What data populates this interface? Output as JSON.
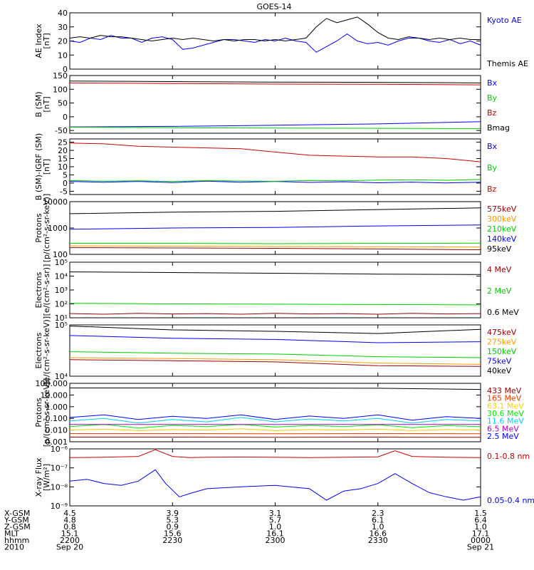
{
  "title": "GOES-14",
  "chart_data": [
    {
      "type": "line",
      "ylabel_lines": [
        "AE Index",
        "[nT]"
      ],
      "ylim": [
        0,
        40
      ],
      "yscale": "linear",
      "yticks": [
        0,
        10,
        20,
        30,
        40
      ],
      "ytick_labels": [
        "0",
        "10",
        "20",
        "30",
        "40"
      ],
      "series": [
        {
          "name": "Kyoto AE",
          "color": "#0000ff",
          "x": [
            0,
            3,
            6,
            9,
            12,
            15,
            18,
            21,
            24,
            27,
            30,
            33,
            36,
            39,
            42,
            45,
            48,
            51,
            54,
            57,
            60,
            63,
            66,
            69,
            72,
            75,
            78,
            81,
            84,
            87,
            90,
            93,
            96,
            99,
            102,
            105,
            108,
            111,
            114,
            117,
            120
          ],
          "y": [
            20,
            19,
            22,
            21,
            24,
            22,
            22,
            19,
            22,
            23,
            21,
            14,
            15,
            17,
            19,
            21,
            21,
            20,
            19,
            21,
            20,
            22,
            20,
            19,
            12,
            16,
            20,
            25,
            20,
            18,
            19,
            17,
            20,
            22,
            22,
            20,
            19,
            21,
            18,
            20,
            17
          ]
        },
        {
          "name": "Themis AE",
          "color": "#000000",
          "x": [
            0,
            3,
            6,
            9,
            12,
            15,
            18,
            21,
            24,
            27,
            30,
            33,
            36,
            39,
            42,
            45,
            48,
            51,
            54,
            57,
            60,
            63,
            66,
            69,
            72,
            75,
            78,
            81,
            84,
            87,
            90,
            93,
            96,
            99,
            102,
            105,
            108,
            111,
            114,
            117,
            120
          ],
          "y": [
            22,
            23,
            22,
            24,
            23,
            23,
            22,
            21,
            20,
            21,
            22,
            21,
            22,
            21,
            20,
            21,
            20,
            21,
            21,
            20,
            21,
            20,
            21,
            22,
            30,
            36,
            33,
            35,
            37,
            32,
            26,
            22,
            21,
            23,
            22,
            21,
            22,
            21,
            22,
            21,
            21
          ]
        }
      ]
    },
    {
      "type": "line",
      "ylabel_lines": [
        "B (SM)",
        "[nT]"
      ],
      "ylim": [
        -60,
        150
      ],
      "yscale": "linear",
      "yticks": [
        -50,
        0,
        50,
        100,
        150
      ],
      "ytick_labels": [
        "-50",
        "0",
        "50",
        "100",
        "150"
      ],
      "series": [
        {
          "name": "Bx",
          "color": "#0000ff",
          "x": [
            0,
            30,
            60,
            90,
            120
          ],
          "y": [
            -37,
            -35,
            -31,
            -26,
            -18
          ]
        },
        {
          "name": "By",
          "color": "#00cc00",
          "x": [
            0,
            30,
            60,
            90,
            120
          ],
          "y": [
            -38,
            -40,
            -41,
            -42,
            -43
          ]
        },
        {
          "name": "Bz",
          "color": "#cc0000",
          "x": [
            0,
            30,
            60,
            90,
            120
          ],
          "y": [
            123,
            121,
            119,
            118,
            116
          ]
        },
        {
          "name": "Bmag",
          "color": "#000000",
          "x": [
            0,
            30,
            60,
            90,
            120
          ],
          "y": [
            130,
            128,
            126,
            125,
            123
          ]
        }
      ]
    },
    {
      "type": "line",
      "ylabel_lines": [
        "B (SM)-IGRF (SM)",
        "[nT]"
      ],
      "ylim": [
        -7,
        27
      ],
      "yscale": "linear",
      "yticks": [
        -5,
        0,
        5,
        10,
        15,
        20,
        25
      ],
      "ytick_labels": [
        "-5",
        "0",
        "5",
        "10",
        "15",
        "20",
        "25"
      ],
      "series": [
        {
          "name": "Bx",
          "color": "#0000ff",
          "x": [
            0,
            10,
            20,
            30,
            40,
            50,
            60,
            70,
            80,
            90,
            100,
            110,
            120
          ],
          "y": [
            1,
            0.5,
            1,
            0.3,
            1.2,
            0.5,
            1,
            0.4,
            0.8,
            0.2,
            0.6,
            0.1,
            0.5
          ]
        },
        {
          "name": "By",
          "color": "#00cc00",
          "x": [
            0,
            10,
            20,
            30,
            40,
            50,
            60,
            70,
            80,
            90,
            100,
            110,
            120
          ],
          "y": [
            1.5,
            1.2,
            1.4,
            1,
            1.5,
            1.3,
            1.1,
            1.6,
            1.4,
            1.8,
            2,
            1.7,
            2.2
          ]
        },
        {
          "name": "Bz",
          "color": "#cc0000",
          "x": [
            0,
            10,
            20,
            30,
            40,
            50,
            55,
            60,
            70,
            80,
            90,
            100,
            110,
            120
          ],
          "y": [
            24.5,
            24,
            22.5,
            22,
            21.5,
            21,
            20,
            19,
            17,
            16.5,
            16,
            16,
            15,
            13
          ]
        }
      ]
    },
    {
      "type": "line",
      "ylabel_lines": [
        "Protons",
        "[p/(cm²-s-sr-keV)]"
      ],
      "ylim": [
        100,
        10000
      ],
      "yscale": "log",
      "yticks": [
        100,
        1000,
        10000
      ],
      "ytick_labels": [
        "100",
        "1000",
        "10000"
      ],
      "series": [
        {
          "name": "575keV",
          "color": "#990000",
          "x": [
            0,
            30,
            60,
            90,
            120
          ],
          "y": [
            180,
            175,
            170,
            160,
            150
          ]
        },
        {
          "name": "300keV",
          "color": "#ff9900",
          "x": [
            0,
            30,
            60,
            90,
            120
          ],
          "y": [
            210,
            205,
            200,
            195,
            190
          ]
        },
        {
          "name": "210keV",
          "color": "#00cc00",
          "x": [
            0,
            30,
            60,
            90,
            120
          ],
          "y": [
            260,
            260,
            255,
            260,
            265
          ]
        },
        {
          "name": "140keV",
          "color": "#0000ff",
          "x": [
            0,
            30,
            60,
            90,
            120
          ],
          "y": [
            900,
            1000,
            1050,
            1200,
            1300
          ]
        },
        {
          "name": "95keV",
          "color": "#000000",
          "x": [
            0,
            30,
            60,
            90,
            120
          ],
          "y": [
            3500,
            4000,
            4300,
            5000,
            5800
          ]
        }
      ]
    },
    {
      "type": "line",
      "ylabel_lines": [
        "Electrons",
        "[e/(cm²-s-sr)]"
      ],
      "ylim": [
        10,
        100000
      ],
      "yscale": "log",
      "yticks": [
        10,
        100,
        1000,
        10000,
        100000
      ],
      "ytick_labels": [
        "10¹",
        "10²",
        "10³",
        "10⁴",
        "10⁵"
      ],
      "series": [
        {
          "name": "4 MeV",
          "color": "#990000",
          "x": [
            0,
            10,
            20,
            30,
            40,
            50,
            60,
            70,
            80,
            90,
            100,
            110,
            120
          ],
          "y": [
            20,
            18,
            21,
            19,
            20,
            18,
            21,
            19,
            20,
            18,
            21,
            19,
            20
          ]
        },
        {
          "name": "2 MeV",
          "color": "#00cc00",
          "x": [
            0,
            30,
            60,
            90,
            120
          ],
          "y": [
            110,
            100,
            95,
            90,
            85
          ]
        },
        {
          "name": "0.6 MeV",
          "color": "#000000",
          "x": [
            0,
            30,
            60,
            90,
            120
          ],
          "y": [
            20000,
            18000,
            16000,
            14000,
            13000
          ]
        }
      ]
    },
    {
      "type": "line",
      "ylabel_lines": [
        "Electrons",
        "[e/(cm²-s-sr-keV)]"
      ],
      "ylim": [
        10000,
        100000
      ],
      "yscale": "log",
      "yticks": [
        10000,
        100000
      ],
      "ytick_labels": [
        "10⁴",
        "10⁵"
      ],
      "series": [
        {
          "name": "475keV",
          "color": "#990000",
          "x": [
            0,
            30,
            60,
            90,
            120
          ],
          "y": [
            21000,
            20000,
            19000,
            16000,
            15500
          ]
        },
        {
          "name": "275keV",
          "color": "#ff9900",
          "x": [
            0,
            30,
            60,
            90,
            120
          ],
          "y": [
            23000,
            22000,
            21000,
            18000,
            17000
          ]
        },
        {
          "name": "150keV",
          "color": "#00cc00",
          "x": [
            0,
            30,
            60,
            90,
            120
          ],
          "y": [
            30000,
            28000,
            27000,
            24000,
            23000
          ]
        },
        {
          "name": "75keV",
          "color": "#0000ff",
          "x": [
            0,
            30,
            60,
            90,
            120
          ],
          "y": [
            62000,
            55000,
            52000,
            45000,
            47000
          ]
        },
        {
          "name": "40keV",
          "color": "#000000",
          "x": [
            0,
            30,
            60,
            90,
            120
          ],
          "y": [
            95000,
            80000,
            75000,
            68000,
            82000
          ]
        }
      ]
    },
    {
      "type": "line",
      "ylabel_lines": [
        "Protons",
        "[p/(cm²-s-sr-keV)]"
      ],
      "ylim": [
        0.001,
        100
      ],
      "yscale": "log",
      "yticks": [
        0.001,
        0.01,
        0.1,
        1,
        10,
        100
      ],
      "ytick_labels": [
        "0.001",
        "0.010",
        "0.100",
        "1.000",
        "10.000",
        "100.000"
      ],
      "series": [
        {
          "name": "433 MeV",
          "color": "#990000",
          "x": [
            0,
            30,
            60,
            90,
            120
          ],
          "y": [
            0.0025,
            0.0025,
            0.0024,
            0.0025,
            0.0024
          ]
        },
        {
          "name": "165 MeV",
          "color": "#ff3300",
          "x": [
            0,
            30,
            60,
            90,
            120
          ],
          "y": [
            0.005,
            0.005,
            0.0048,
            0.005,
            0.0049
          ]
        },
        {
          "name": "63.1 MeV",
          "color": "#ffcc00",
          "x": [
            0,
            10,
            20,
            30,
            40,
            50,
            60,
            70,
            80,
            90,
            100,
            110,
            120
          ],
          "y": [
            0.01,
            0.012,
            0.009,
            0.011,
            0.01,
            0.013,
            0.009,
            0.011,
            0.01,
            0.012,
            0.009,
            0.011,
            0.01
          ]
        },
        {
          "name": "30.6 MeV",
          "color": "#00ee00",
          "x": [
            0,
            10,
            20,
            30,
            40,
            50,
            60,
            70,
            80,
            90,
            100,
            110,
            120
          ],
          "y": [
            0.02,
            0.03,
            0.015,
            0.025,
            0.02,
            0.03,
            0.018,
            0.025,
            0.02,
            0.028,
            0.016,
            0.024,
            0.02
          ]
        },
        {
          "name": "11.6 MeV",
          "color": "#00ccff",
          "x": [
            0,
            10,
            20,
            30,
            40,
            50,
            60,
            70,
            80,
            90,
            100,
            110,
            120
          ],
          "y": [
            0.06,
            0.1,
            0.04,
            0.08,
            0.05,
            0.12,
            0.05,
            0.09,
            0.06,
            0.1,
            0.04,
            0.08,
            0.06
          ]
        },
        {
          "name": "6.5 MeV",
          "color": "#aa00cc",
          "x": [
            0,
            30,
            60,
            90,
            120
          ],
          "y": [
            0.03,
            0.03,
            0.03,
            0.03,
            0.03
          ]
        },
        {
          "name": "2.5 MeV",
          "color": "#0000ff",
          "x": [
            0,
            10,
            20,
            30,
            40,
            50,
            60,
            70,
            80,
            90,
            100,
            110,
            120
          ],
          "y": [
            0.12,
            0.2,
            0.08,
            0.15,
            0.1,
            0.2,
            0.08,
            0.16,
            0.1,
            0.2,
            0.07,
            0.14,
            0.1
          ]
        },
        {
          "name": "",
          "color": "#000000",
          "x": [
            0,
            30,
            60,
            90,
            120
          ],
          "y": [
            40,
            40,
            40,
            38,
            30
          ]
        }
      ]
    },
    {
      "type": "line",
      "ylabel_lines": [
        "X-ray Flux",
        "[W/m²]"
      ],
      "ylim": [
        1e-09,
        1e-06
      ],
      "yscale": "log",
      "yticks": [
        1e-09,
        1e-08,
        1e-07,
        1e-06
      ],
      "ytick_labels": [
        "10⁻⁹",
        "10⁻⁸",
        "10⁻⁷",
        "10⁻⁶"
      ],
      "series": [
        {
          "name": "0.1-0.8 nm",
          "color": "#cc0000",
          "x": [
            0,
            10,
            20,
            25,
            30,
            35,
            40,
            50,
            60,
            70,
            80,
            90,
            95,
            100,
            110,
            120
          ],
          "y": [
            3.5e-07,
            3.6e-07,
            4e-07,
            9e-07,
            4e-07,
            3.5e-07,
            3.6e-07,
            3.7e-07,
            3.6e-07,
            3.5e-07,
            3.6e-07,
            3.8e-07,
            8e-07,
            4e-07,
            3.6e-07,
            3.5e-07
          ]
        },
        {
          "name": "0.05-0.4 nm",
          "color": "#0000ff",
          "x": [
            0,
            5,
            10,
            15,
            20,
            25,
            28,
            32,
            36,
            40,
            50,
            60,
            70,
            75,
            80,
            85,
            90,
            95,
            100,
            105,
            110,
            115,
            120
          ],
          "y": [
            2e-08,
            2.5e-08,
            1.5e-08,
            1.2e-08,
            2e-08,
            8e-08,
            1.5e-08,
            3e-09,
            5e-09,
            8e-09,
            1e-08,
            1.2e-08,
            8e-09,
            2e-09,
            6e-09,
            8e-09,
            1.5e-08,
            5e-08,
            1.5e-08,
            5e-09,
            3e-09,
            2e-09,
            3e-09
          ]
        }
      ]
    }
  ],
  "axis_rows": [
    {
      "label": "X-GSM",
      "values": [
        "4.5",
        "3.9",
        "3.1",
        "2.3",
        "1.5"
      ]
    },
    {
      "label": "Y-GSM",
      "values": [
        "4.8",
        "5.3",
        "5.7",
        "6.1",
        "6.4"
      ]
    },
    {
      "label": "Z-GSM",
      "values": [
        "0.8",
        "0.9",
        "1.0",
        "1.0",
        "1.0"
      ]
    },
    {
      "label": "MLT",
      "values": [
        "15.1",
        "15.6",
        "16.1",
        "16.6",
        "17.1"
      ]
    },
    {
      "label": "hhmm",
      "values": [
        "2200",
        "2230",
        "2300",
        "2330",
        "0000"
      ]
    },
    {
      "label": "2010",
      "values": [
        "Sep 20",
        "",
        "",
        "",
        "Sep 21"
      ]
    }
  ],
  "xlim": [
    0,
    120
  ],
  "xticks": [
    0,
    30,
    60,
    90,
    120
  ]
}
